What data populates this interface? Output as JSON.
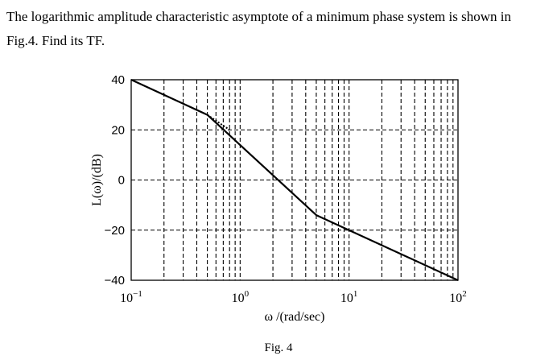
{
  "question": {
    "line1": "The logarithmic amplitude characteristic asymptote of a minimum phase system is shown in",
    "line2": "Fig.4.  Find its TF."
  },
  "figure_caption": "Fig. 4",
  "colors": {
    "line": "#000000",
    "grid": "#000000",
    "background": "#ffffff"
  },
  "chart_data": {
    "type": "line",
    "xscale": "log",
    "xlabel": "ω /(rad/sec)",
    "ylabel": "L(ω)/(dB)",
    "xlim": [
      0.1,
      100
    ],
    "ylim": [
      -40,
      40
    ],
    "x_ticks": [
      {
        "value": 0.1,
        "base": "10",
        "exp": "−1"
      },
      {
        "value": 1,
        "base": "10",
        "exp": "0"
      },
      {
        "value": 10,
        "base": "10",
        "exp": "1"
      },
      {
        "value": 100,
        "base": "10",
        "exp": "2"
      }
    ],
    "y_ticks": [
      {
        "value": 40,
        "label": "40"
      },
      {
        "value": 20,
        "label": "20"
      },
      {
        "value": 0,
        "label": "0"
      },
      {
        "value": -20,
        "label": "−20"
      },
      {
        "value": -40,
        "label": "−40"
      }
    ],
    "grid": true,
    "series": [
      {
        "style": "solid",
        "points": [
          [
            0.1,
            40
          ],
          [
            0.5,
            26
          ],
          [
            5,
            -14
          ],
          [
            100,
            -40
          ]
        ]
      },
      {
        "style": "dotted",
        "points": [
          [
            0.5,
            26
          ],
          [
            0.8,
            20
          ]
        ]
      }
    ]
  }
}
